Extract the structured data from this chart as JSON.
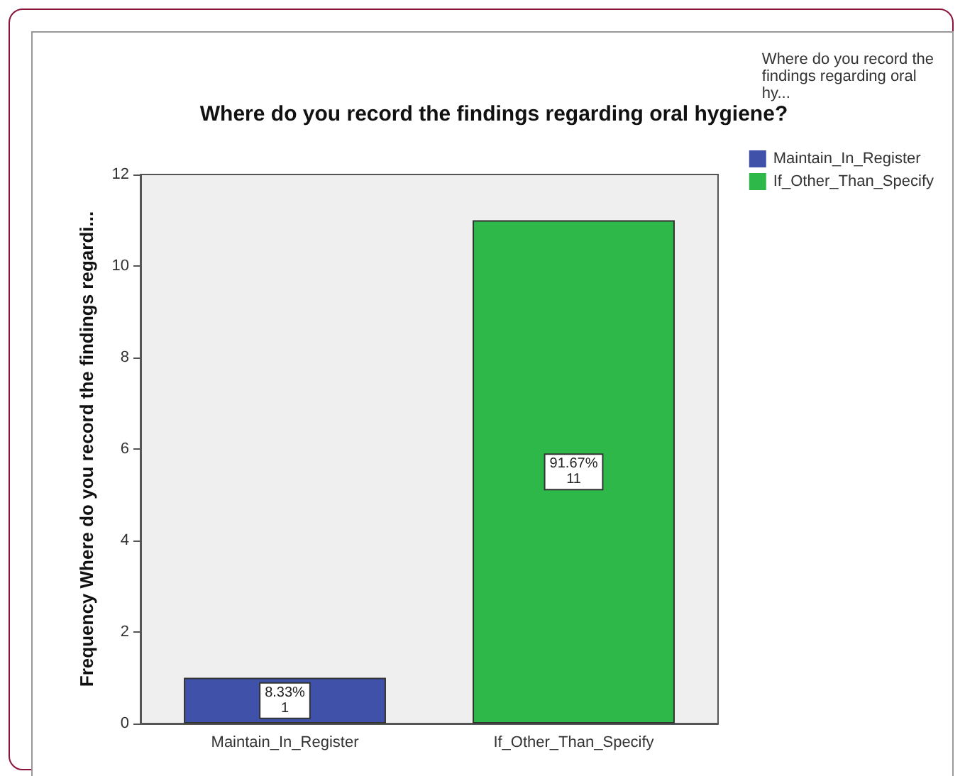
{
  "chart_data": {
    "type": "bar",
    "title": "Where do you record the findings regarding oral hygiene?",
    "ylabel": "Frequency Where do you record the findings regardi...",
    "legend_title": "Where do you record the findings regarding oral hy...",
    "categories": [
      "Maintain_In_Register",
      "If_Other_Than_Specify"
    ],
    "series": [
      {
        "name": "Maintain_In_Register",
        "color": "#3f51a8",
        "values": [
          1,
          null
        ],
        "value_labels": [
          "8.33%\n1",
          null
        ]
      },
      {
        "name": "If_Other_Than_Specify",
        "color": "#2fb84a",
        "values": [
          null,
          11
        ],
        "value_labels": [
          null,
          "91.67%\n11"
        ]
      }
    ],
    "ylim": [
      0,
      12
    ],
    "yticks": [
      0,
      2,
      4,
      6,
      8,
      10,
      12
    ],
    "grid": false,
    "legend": "top right"
  }
}
